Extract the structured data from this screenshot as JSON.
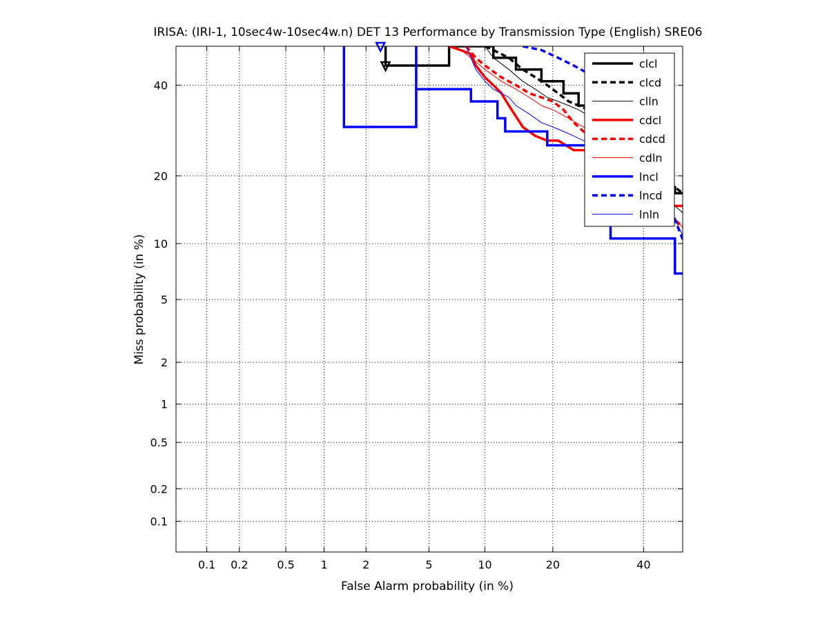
{
  "chart_data": {
    "type": "line",
    "subtype": "DET curve",
    "title": "IRISA: (IRI-1, 10sec4w-10sec4w.n) DET 13 Performance by Transmission Type (English) SRE06",
    "xlabel": "False Alarm probability (in %)",
    "ylabel": "Miss probability (in %)",
    "x_scale": "normal-deviate (probit)",
    "y_scale": "normal-deviate (probit)",
    "xlim": [
      0.05,
      50
    ],
    "ylim": [
      0.05,
      50
    ],
    "x_ticks": [
      0.1,
      0.2,
      0.5,
      1,
      2,
      5,
      10,
      20,
      40
    ],
    "x_tick_labels": [
      "0.1",
      "0.2",
      "0.5",
      "1",
      "2",
      "5",
      "10",
      "20",
      "40"
    ],
    "y_ticks": [
      0.1,
      0.2,
      0.5,
      1,
      2,
      5,
      10,
      20,
      40
    ],
    "y_tick_labels": [
      "0.1",
      "0.2",
      "0.5",
      "1",
      "2",
      "5",
      "10",
      "20",
      "40"
    ],
    "grid": "dotted",
    "legend_position": "top-right",
    "series": [
      {
        "name": "clcl",
        "color": "#000000",
        "style": "solid",
        "width": 3.5,
        "points": [
          [
            2.7,
            50
          ],
          [
            2.7,
            45
          ],
          [
            6.5,
            45
          ],
          [
            6.5,
            50
          ],
          [
            11,
            50
          ],
          [
            11,
            47
          ],
          [
            14,
            47
          ],
          [
            14,
            44
          ],
          [
            18,
            44
          ],
          [
            18,
            41
          ],
          [
            22,
            41
          ],
          [
            22,
            38
          ],
          [
            25,
            38
          ],
          [
            25,
            35
          ],
          [
            28,
            35
          ],
          [
            28,
            33
          ],
          [
            35,
            33
          ],
          [
            35,
            28
          ],
          [
            40,
            28
          ],
          [
            40,
            22
          ],
          [
            46,
            22
          ],
          [
            46,
            18
          ],
          [
            48,
            18
          ],
          [
            48,
            17
          ],
          [
            50,
            17
          ]
        ],
        "marker": {
          "x": 2.7,
          "y": 45
        }
      },
      {
        "name": "clcd",
        "color": "#000000",
        "style": "dashed",
        "width": 3.5,
        "points": [
          [
            10,
            50
          ],
          [
            11,
            49
          ],
          [
            13,
            47
          ],
          [
            15,
            44
          ],
          [
            17,
            42
          ],
          [
            19,
            40
          ],
          [
            21,
            38
          ],
          [
            23,
            36
          ],
          [
            25,
            35
          ],
          [
            27,
            34
          ],
          [
            29,
            33
          ],
          [
            33,
            31
          ],
          [
            37,
            28
          ],
          [
            41,
            24
          ],
          [
            45,
            20
          ],
          [
            48,
            18
          ],
          [
            50,
            17
          ]
        ]
      },
      {
        "name": "clln",
        "color": "#000000",
        "style": "solid",
        "width": 1,
        "points": [
          [
            10,
            50
          ],
          [
            11,
            47
          ],
          [
            13,
            44
          ],
          [
            15,
            41
          ],
          [
            17,
            39
          ],
          [
            19,
            37
          ],
          [
            21,
            36
          ],
          [
            23,
            35
          ],
          [
            25,
            34
          ],
          [
            28,
            32
          ],
          [
            32,
            29
          ],
          [
            36,
            26
          ],
          [
            40,
            22
          ],
          [
            45,
            17
          ],
          [
            48,
            15
          ],
          [
            50,
            14
          ]
        ]
      },
      {
        "name": "cdcl",
        "color": "#ff0000",
        "style": "solid",
        "width": 3.5,
        "points": [
          [
            6.5,
            50
          ],
          [
            7.5,
            49
          ],
          [
            8.5,
            48
          ],
          [
            9,
            45
          ],
          [
            10,
            42
          ],
          [
            11,
            40
          ],
          [
            12,
            38
          ],
          [
            13,
            35
          ],
          [
            15,
            30
          ],
          [
            17,
            28
          ],
          [
            19,
            27
          ],
          [
            21,
            27
          ],
          [
            24,
            25
          ],
          [
            26,
            25
          ],
          [
            30,
            25
          ],
          [
            30,
            22
          ],
          [
            36,
            22
          ],
          [
            40,
            20
          ],
          [
            45,
            16
          ],
          [
            48,
            15
          ],
          [
            50,
            15
          ]
        ]
      },
      {
        "name": "cdcd",
        "color": "#ff0000",
        "style": "dashed",
        "width": 3.5,
        "points": [
          [
            8,
            50
          ],
          [
            9,
            47
          ],
          [
            10,
            45
          ],
          [
            12,
            42
          ],
          [
            14,
            40
          ],
          [
            16,
            38
          ],
          [
            18,
            37
          ],
          [
            20,
            36
          ],
          [
            22,
            34
          ],
          [
            24,
            31
          ],
          [
            26,
            29
          ],
          [
            28,
            28
          ],
          [
            32,
            26
          ],
          [
            36,
            23
          ],
          [
            40,
            19
          ],
          [
            45,
            15
          ],
          [
            48,
            13
          ],
          [
            50,
            12
          ]
        ]
      },
      {
        "name": "cdln",
        "color": "#ff0000",
        "style": "solid",
        "width": 1,
        "points": [
          [
            7,
            50
          ],
          [
            8,
            48
          ],
          [
            9,
            46
          ],
          [
            10,
            44
          ],
          [
            12,
            41
          ],
          [
            14,
            39
          ],
          [
            16,
            37
          ],
          [
            18,
            35
          ],
          [
            20,
            34
          ],
          [
            23,
            32
          ],
          [
            26,
            30
          ],
          [
            30,
            28
          ],
          [
            35,
            25
          ],
          [
            40,
            21
          ],
          [
            45,
            16
          ],
          [
            48,
            13
          ],
          [
            50,
            12
          ]
        ]
      },
      {
        "name": "lncl",
        "color": "#0000ff",
        "style": "solid",
        "width": 3.5,
        "points": [
          [
            1.4,
            50
          ],
          [
            1.4,
            30
          ],
          [
            4.2,
            30
          ],
          [
            4.2,
            50
          ],
          [
            4.2,
            39
          ],
          [
            8.5,
            39
          ],
          [
            8.5,
            36
          ],
          [
            11.5,
            36
          ],
          [
            11.5,
            32
          ],
          [
            12.5,
            32
          ],
          [
            12.5,
            29
          ],
          [
            19,
            29
          ],
          [
            19,
            26
          ],
          [
            32,
            26
          ],
          [
            32,
            10.6
          ],
          [
            48,
            10.6
          ],
          [
            48,
            7
          ],
          [
            50,
            7
          ]
        ],
        "marker": {
          "x": 2.5,
          "y": 50
        }
      },
      {
        "name": "lncd",
        "color": "#0000ff",
        "style": "dashed",
        "width": 3.5,
        "points": [
          [
            15,
            50
          ],
          [
            18,
            49
          ],
          [
            21,
            47
          ],
          [
            24,
            45
          ],
          [
            27,
            43
          ],
          [
            30,
            40
          ],
          [
            34,
            35
          ],
          [
            38,
            30
          ],
          [
            42,
            24
          ],
          [
            46,
            17
          ],
          [
            48,
            13
          ],
          [
            50,
            10.5
          ]
        ]
      },
      {
        "name": "lnln",
        "color": "#0000ff",
        "style": "solid",
        "width": 1,
        "points": [
          [
            8,
            50
          ],
          [
            9,
            44
          ],
          [
            10,
            41
          ],
          [
            11,
            39
          ],
          [
            12,
            38
          ],
          [
            13,
            37
          ],
          [
            14,
            35
          ],
          [
            16,
            33
          ],
          [
            18,
            31
          ],
          [
            20,
            30
          ],
          [
            22,
            29
          ],
          [
            24,
            28
          ],
          [
            26,
            27
          ],
          [
            30,
            26
          ],
          [
            35,
            25
          ],
          [
            40,
            21
          ],
          [
            45,
            16
          ],
          [
            48,
            13
          ],
          [
            50,
            11
          ]
        ]
      }
    ]
  }
}
